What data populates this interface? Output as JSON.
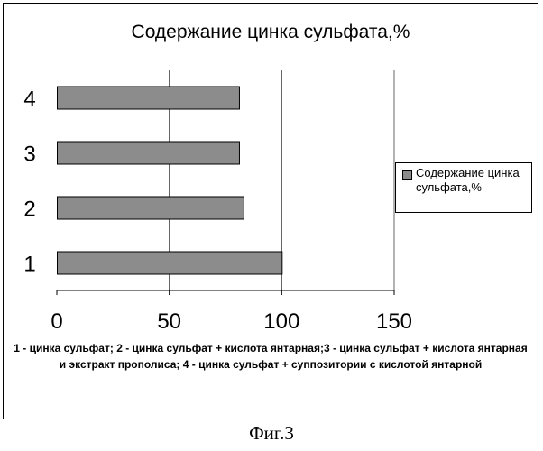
{
  "chart_data": {
    "type": "bar",
    "orientation": "horizontal",
    "title": "Содержание цинка сульфата,%",
    "categories": [
      "1",
      "2",
      "3",
      "4"
    ],
    "series": [
      {
        "name": "Содержание цинка сульфата,%",
        "values": [
          100,
          83,
          81,
          81
        ]
      }
    ],
    "xlim": [
      0,
      150
    ],
    "xticks": [
      "0",
      "50",
      "100",
      "150"
    ],
    "grid": "vertical",
    "legend": "right",
    "bar_color": "#8c8c8c"
  },
  "caption": "1 - цинка сульфат; 2 - цинка сульфат + кислота янтарная;3 - цинка сульфат + кислота янтарная и экстракт прополиса; 4 - цинка сульфат + суппозитории с кислотой янтарной",
  "figure_label": "Фиг.3"
}
